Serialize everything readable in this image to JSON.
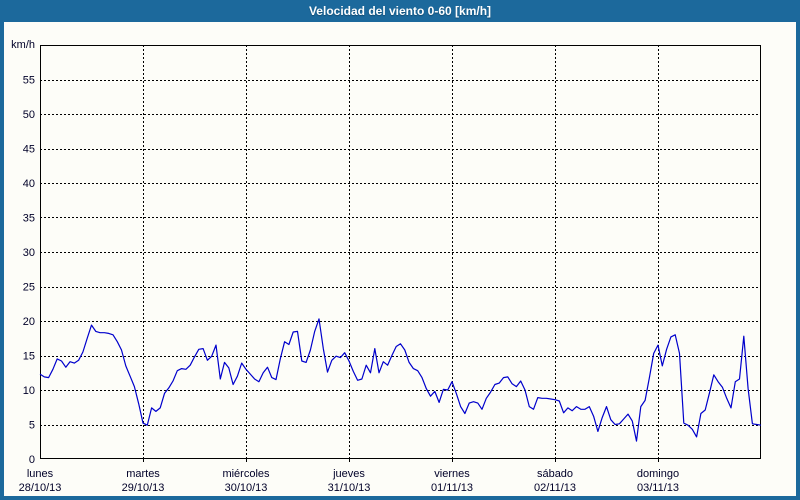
{
  "title": "Velocidad del viento 0-60 [km/h]",
  "colors": {
    "frame": "#1c699c",
    "background": "#fdfdf8",
    "line": "#0000cc",
    "grid": "#000000",
    "text": "#000028"
  },
  "chart_data": {
    "type": "line",
    "title": "Velocidad del viento 0-60 [km/h]",
    "ylabel": "km/h",
    "ylim": [
      0,
      60
    ],
    "ytick_step": 5,
    "ytick_labels": [
      "0",
      "5",
      "10",
      "15",
      "20",
      "25",
      "30",
      "35",
      "40",
      "45",
      "50",
      "55"
    ],
    "grid": "dashed",
    "x_categories": [
      {
        "name": "lunes",
        "date": "28/10/13"
      },
      {
        "name": "martes",
        "date": "29/10/13"
      },
      {
        "name": "miércoles",
        "date": "30/10/13"
      },
      {
        "name": "jueves",
        "date": "31/10/13"
      },
      {
        "name": "viernes",
        "date": "01/11/13"
      },
      {
        "name": "sábado",
        "date": "02/11/13"
      },
      {
        "name": "domingo",
        "date": "03/11/13"
      }
    ],
    "points_per_day": 24,
    "series": [
      {
        "name": "Velocidad del viento",
        "values": [
          12.3,
          11.9,
          11.8,
          13,
          14.5,
          14.2,
          13.3,
          14.1,
          13.9,
          14.3,
          15.5,
          17.5,
          19.4,
          18.5,
          18.3,
          18.3,
          18.2,
          18,
          17,
          15.8,
          13.5,
          12,
          10.5,
          8,
          5.2,
          4.9,
          7.4,
          6.9,
          7.4,
          9.5,
          10.3,
          11.3,
          12.8,
          13.1,
          13,
          13.6,
          14.8,
          15.9,
          16,
          14.3,
          14.9,
          16.5,
          11.6,
          14,
          13.2,
          10.8,
          12,
          13.9,
          13,
          12.3,
          11.6,
          11.2,
          12.5,
          13.3,
          11.8,
          11.5,
          14.5,
          17,
          16.6,
          18.4,
          18.5,
          14.2,
          14,
          15.8,
          18.5,
          20.3,
          16,
          12.6,
          14.3,
          14.9,
          14.7,
          15.4,
          14.2,
          12.7,
          11.4,
          11.6,
          13.6,
          12.5,
          16,
          12.5,
          14.1,
          13.6,
          15,
          16.3,
          16.7,
          15.8,
          14,
          13.1,
          12.8,
          11.8,
          10.2,
          9.1,
          9.8,
          8.2,
          10.1,
          10,
          11.2,
          9.5,
          7.6,
          6.6,
          8.1,
          8.3,
          8.1,
          7.2,
          8.8,
          9.7,
          10.8,
          11,
          11.8,
          11.9,
          10.9,
          10.5,
          11.3,
          10,
          7.6,
          7.2,
          8.9,
          8.8,
          8.8,
          8.7,
          8.6,
          8.4,
          6.7,
          7.4,
          7,
          7.6,
          7.2,
          7.2,
          7.6,
          6.2,
          4,
          6,
          7.6,
          5.7,
          5,
          5.1,
          5.8,
          6.5,
          5.5,
          2.6,
          7.6,
          8.5,
          11.8,
          15.3,
          16.5,
          13.5,
          15.9,
          17.7,
          18,
          15.3,
          5.2,
          4.9,
          4.3,
          3.2,
          6.6,
          7.1,
          9.6,
          12.2,
          11.2,
          10.4,
          8.8,
          7.4,
          11.2,
          11.6,
          17.8,
          10.2,
          5.1,
          5,
          4.9
        ]
      }
    ]
  }
}
